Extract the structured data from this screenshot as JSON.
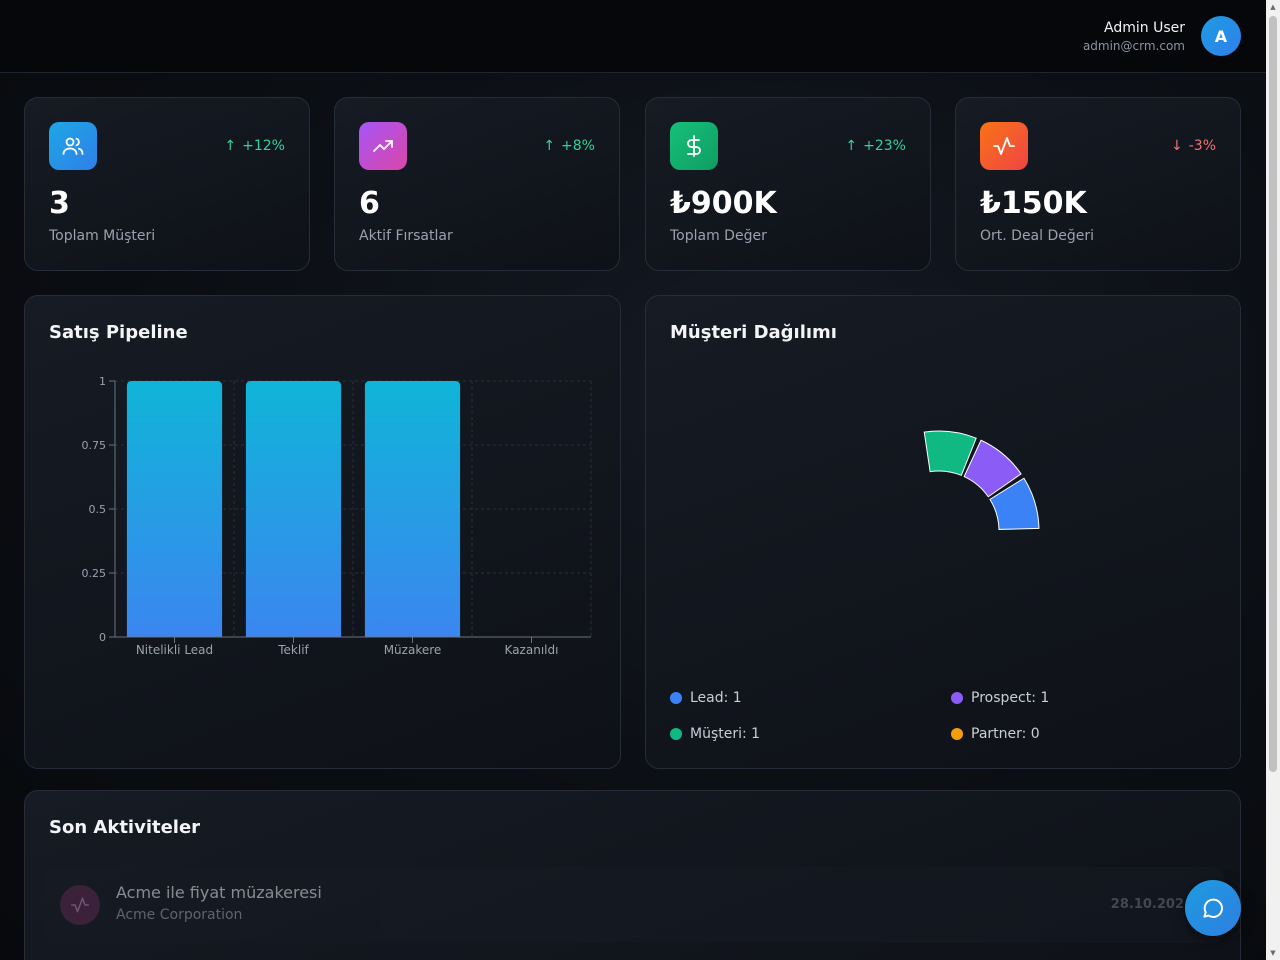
{
  "user": {
    "name": "Admin User",
    "email": "admin@crm.com",
    "avatar_letter": "A"
  },
  "stats": [
    {
      "value": "3",
      "label": "Toplam Müşteri",
      "change": "+12%",
      "trend": "up",
      "icon": "users-icon",
      "color": "#1e9be0"
    },
    {
      "value": "6",
      "label": "Aktif Fırsatlar",
      "change": "+8%",
      "trend": "up",
      "icon": "trending-up-icon",
      "color": "#b03fd8"
    },
    {
      "value": "₺900K",
      "label": "Toplam Değer",
      "change": "+23%",
      "trend": "up",
      "icon": "dollar-icon",
      "color": "#10b36b"
    },
    {
      "value": "₺150K",
      "label": "Ort. Deal Değeri",
      "change": "-3%",
      "trend": "down",
      "icon": "activity-icon",
      "color": "#f4511e"
    }
  ],
  "pipeline": {
    "title": "Satış Pipeline"
  },
  "distribution": {
    "title": "Müşteri Dağılımı",
    "legend": [
      {
        "label": "Lead: 1",
        "color": "#3b82f6"
      },
      {
        "label": "Prospect: 1",
        "color": "#8b5cf6"
      },
      {
        "label": "Müşteri: 1",
        "color": "#10b981"
      },
      {
        "label": "Partner: 0",
        "color": "#f59e0b"
      }
    ]
  },
  "activities": {
    "title": "Son Aktiviteler",
    "items": [
      {
        "title": "Acme ile fiyat müzakeresi",
        "company": "Acme Corporation",
        "date": "28.10.202"
      }
    ]
  },
  "chart_data": [
    {
      "type": "bar",
      "title": "Satış Pipeline",
      "categories": [
        "Nitelikli Lead",
        "Teklif",
        "Müzakere",
        "Kazanıldı"
      ],
      "values": [
        1,
        1,
        1,
        0
      ],
      "ylim": [
        0,
        1
      ],
      "yticks": [
        "0",
        "0.25",
        "0.5",
        "0.75",
        "1"
      ],
      "grid": true
    },
    {
      "type": "pie",
      "title": "Müşteri Dağılımı",
      "categories": [
        "Lead",
        "Prospect",
        "Müşteri",
        "Partner"
      ],
      "values": [
        1,
        1,
        1,
        0
      ],
      "colors": [
        "#3b82f6",
        "#8b5cf6",
        "#10b981",
        "#f59e0b"
      ]
    }
  ]
}
